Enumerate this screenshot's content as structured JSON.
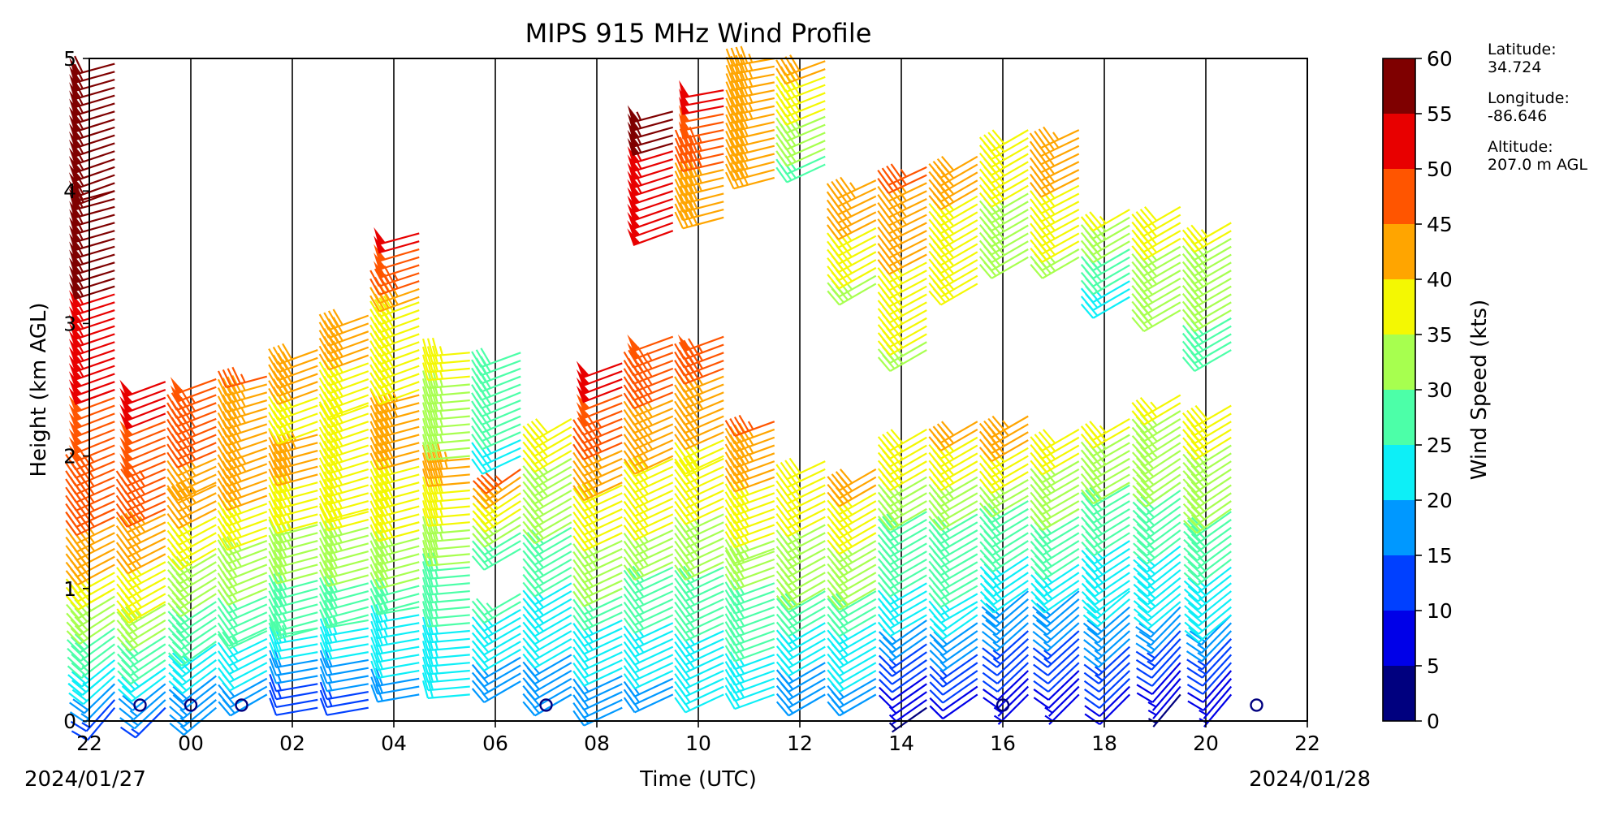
{
  "chart_data": {
    "type": "wind_barb_profile",
    "title": "MIPS 915 MHz Wind Profile",
    "xlabel": "Time (UTC)",
    "ylabel": "Height (km AGL)",
    "x_ticks": [
      "22",
      "00",
      "02",
      "04",
      "06",
      "08",
      "10",
      "12",
      "14",
      "16",
      "18",
      "20",
      "22"
    ],
    "x_tick_hours": [
      -2,
      0,
      2,
      4,
      6,
      8,
      10,
      12,
      14,
      16,
      18,
      20,
      22
    ],
    "x_range_hours": [
      -2,
      22
    ],
    "date_start": "2024/01/27",
    "date_end": "2024/01/28",
    "y_ticks": [
      "0",
      "1",
      "2",
      "3",
      "4",
      "5"
    ],
    "ylim": [
      0,
      5
    ],
    "grid": "vertical lines at every x tick",
    "colorbar": {
      "label": "Wind Speed (kts)",
      "ticks": [
        "0",
        "5",
        "10",
        "15",
        "20",
        "25",
        "30",
        "35",
        "40",
        "45",
        "50",
        "55",
        "60"
      ],
      "range": [
        0,
        60
      ],
      "bins": [
        {
          "min": 0,
          "max": 5,
          "color": "#00007f"
        },
        {
          "min": 5,
          "max": 10,
          "color": "#0000e8"
        },
        {
          "min": 10,
          "max": 15,
          "color": "#0040ff"
        },
        {
          "min": 15,
          "max": 20,
          "color": "#0098ff"
        },
        {
          "min": 20,
          "max": 25,
          "color": "#0deff7"
        },
        {
          "min": 25,
          "max": 30,
          "color": "#4cffa8"
        },
        {
          "min": 30,
          "max": 35,
          "color": "#a7ff4f"
        },
        {
          "min": 35,
          "max": 40,
          "color": "#f4f802"
        },
        {
          "min": 40,
          "max": 45,
          "color": "#ffa500"
        },
        {
          "min": 45,
          "max": 50,
          "color": "#ff5500"
        },
        {
          "min": 50,
          "max": 55,
          "color": "#e80000"
        },
        {
          "min": 55,
          "max": 60,
          "color": "#7f0000"
        }
      ]
    },
    "profiles": [
      {
        "time_hr": -1.5,
        "segments": [
          {
            "h0": 0.1,
            "h1": 0.4,
            "s0": 12,
            "s1": 22,
            "d0": 220,
            "d1": 230
          },
          {
            "h0": 0.4,
            "h1": 1.0,
            "s0": 23,
            "s1": 36,
            "d0": 230,
            "d1": 240
          },
          {
            "h0": 1.0,
            "h1": 1.6,
            "s0": 38,
            "s1": 46,
            "d0": 240,
            "d1": 245
          },
          {
            "h0": 1.6,
            "h1": 2.5,
            "s0": 45,
            "s1": 50,
            "d0": 245,
            "d1": 250
          },
          {
            "h0": 2.5,
            "h1": 4.0,
            "s0": 52,
            "s1": 58,
            "d0": 250,
            "d1": 255
          },
          {
            "h0": 4.0,
            "h1": 5.0,
            "s0": 55,
            "s1": 60,
            "d0": 250,
            "d1": 255
          }
        ]
      },
      {
        "time_hr": -0.5,
        "segments": [
          {
            "h0": 0.1,
            "h1": 0.4,
            "s0": 14,
            "s1": 22,
            "d0": 225,
            "d1": 235
          },
          {
            "h0": 0.4,
            "h1": 0.9,
            "s0": 24,
            "s1": 34,
            "d0": 235,
            "d1": 240
          },
          {
            "h0": 0.9,
            "h1": 1.6,
            "s0": 36,
            "s1": 44,
            "d0": 240,
            "d1": 245
          },
          {
            "h0": 1.6,
            "h1": 2.6,
            "s0": 45,
            "s1": 52,
            "d0": 245,
            "d1": 250
          }
        ]
      },
      {
        "time_hr": 0.5,
        "segments": [
          {
            "h0": 0.1,
            "h1": 0.6,
            "s0": 15,
            "s1": 25,
            "d0": 230,
            "d1": 235
          },
          {
            "h0": 0.6,
            "h1": 1.3,
            "s0": 26,
            "s1": 35,
            "d0": 235,
            "d1": 240
          },
          {
            "h0": 1.3,
            "h1": 1.8,
            "s0": 36,
            "s1": 44,
            "d0": 240,
            "d1": 245
          },
          {
            "h0": 1.8,
            "h1": 2.6,
            "s0": 44,
            "s1": 48,
            "d0": 245,
            "d1": 250
          }
        ]
      },
      {
        "time_hr": 1.5,
        "segments": [
          {
            "h0": 0.2,
            "h1": 0.7,
            "s0": 18,
            "s1": 26,
            "d0": 240,
            "d1": 245
          },
          {
            "h0": 0.7,
            "h1": 1.4,
            "s0": 27,
            "s1": 35,
            "d0": 245,
            "d1": 250
          },
          {
            "h0": 1.4,
            "h1": 2.0,
            "s0": 36,
            "s1": 44,
            "d0": 250,
            "d1": 250
          },
          {
            "h0": 2.0,
            "h1": 2.6,
            "s0": 40,
            "s1": 45,
            "d0": 250,
            "d1": 255
          }
        ]
      },
      {
        "time_hr": 2.5,
        "segments": [
          {
            "h0": 0.1,
            "h1": 0.7,
            "s0": 10,
            "s1": 25,
            "d0": 260,
            "d1": 260
          },
          {
            "h0": 0.7,
            "h1": 1.5,
            "s0": 26,
            "s1": 34,
            "d0": 255,
            "d1": 255
          },
          {
            "h0": 1.5,
            "h1": 2.2,
            "s0": 36,
            "s1": 44,
            "d0": 255,
            "d1": 255
          },
          {
            "h0": 2.2,
            "h1": 2.8,
            "s0": 38,
            "s1": 42,
            "d0": 250,
            "d1": 250
          }
        ]
      },
      {
        "time_hr": 3.5,
        "segments": [
          {
            "h0": 0.1,
            "h1": 0.8,
            "s0": 12,
            "s1": 26,
            "d0": 260,
            "d1": 260
          },
          {
            "h0": 0.8,
            "h1": 1.6,
            "s0": 27,
            "s1": 36,
            "d0": 255,
            "d1": 255
          },
          {
            "h0": 1.6,
            "h1": 2.4,
            "s0": 36,
            "s1": 40,
            "d0": 255,
            "d1": 250
          },
          {
            "h0": 2.4,
            "h1": 3.1,
            "s0": 38,
            "s1": 42,
            "d0": 250,
            "d1": 250
          }
        ]
      },
      {
        "time_hr": 4.5,
        "segments": [
          {
            "h0": 0.2,
            "h1": 0.9,
            "s0": 18,
            "s1": 26,
            "d0": 260,
            "d1": 260
          },
          {
            "h0": 0.9,
            "h1": 1.5,
            "s0": 28,
            "s1": 36,
            "d0": 255,
            "d1": 255
          },
          {
            "h0": 1.5,
            "h1": 2.5,
            "s0": 37,
            "s1": 44,
            "d0": 255,
            "d1": 255
          },
          {
            "h0": 2.5,
            "h1": 3.2,
            "s0": 38,
            "s1": 40,
            "d0": 250,
            "d1": 250
          },
          {
            "h0": 3.2,
            "h1": 3.7,
            "s0": 44,
            "s1": 52,
            "d0": 250,
            "d1": 255
          }
        ]
      },
      {
        "time_hr": 5.5,
        "segments": [
          {
            "h0": 0.2,
            "h1": 1.2,
            "s0": 22,
            "s1": 28,
            "d0": 265,
            "d1": 265
          },
          {
            "h0": 1.2,
            "h1": 2.0,
            "s0": 30,
            "s1": 44,
            "d0": 265,
            "d1": 265
          },
          {
            "h0": 2.0,
            "h1": 2.8,
            "s0": 32,
            "s1": 36,
            "d0": 265,
            "d1": 265
          }
        ]
      },
      {
        "time_hr": 6.5,
        "segments": [
          {
            "h0": 0.3,
            "h1": 1.0,
            "s0": 17,
            "s1": 27,
            "d0": 240,
            "d1": 240
          },
          {
            "h0": 1.3,
            "h1": 1.9,
            "s0": 25,
            "s1": 45,
            "d0": 240,
            "d1": 235
          },
          {
            "h0": 2.0,
            "h1": 2.8,
            "s0": 24,
            "s1": 30,
            "d0": 245,
            "d1": 250
          }
        ]
      },
      {
        "time_hr": 7.5,
        "segments": [
          {
            "h0": 0.2,
            "h1": 1.5,
            "s0": 17,
            "s1": 29,
            "d0": 240,
            "d1": 240
          },
          {
            "h0": 1.5,
            "h1": 2.3,
            "s0": 30,
            "s1": 38,
            "d0": 240,
            "d1": 240
          }
        ]
      },
      {
        "time_hr": 8.5,
        "segments": [
          {
            "h0": 0.1,
            "h1": 1.0,
            "s0": 16,
            "s1": 28,
            "d0": 245,
            "d1": 245
          },
          {
            "h0": 1.0,
            "h1": 1.8,
            "s0": 30,
            "s1": 40,
            "d0": 245,
            "d1": 245
          },
          {
            "h0": 1.8,
            "h1": 2.7,
            "s0": 42,
            "s1": 52,
            "d0": 245,
            "d1": 250
          }
        ]
      },
      {
        "time_hr": 9.5,
        "segments": [
          {
            "h0": 0.2,
            "h1": 1.2,
            "s0": 18,
            "s1": 30,
            "d0": 245,
            "d1": 245
          },
          {
            "h0": 1.2,
            "h1": 2.0,
            "s0": 32,
            "s1": 40,
            "d0": 245,
            "d1": 245
          },
          {
            "h0": 2.0,
            "h1": 2.9,
            "s0": 42,
            "s1": 48,
            "d0": 245,
            "d1": 250
          },
          {
            "h0": 3.7,
            "h1": 4.6,
            "s0": 50,
            "s1": 57,
            "d0": 250,
            "d1": 255
          }
        ]
      },
      {
        "time_hr": 10.5,
        "segments": [
          {
            "h0": 0.2,
            "h1": 1.2,
            "s0": 20,
            "s1": 30,
            "d0": 245,
            "d1": 245
          },
          {
            "h0": 1.2,
            "h1": 2.0,
            "s0": 32,
            "s1": 38,
            "d0": 245,
            "d1": 245
          },
          {
            "h0": 2.0,
            "h1": 2.9,
            "s0": 38,
            "s1": 48,
            "d0": 245,
            "d1": 250
          },
          {
            "h0": 3.8,
            "h1": 4.8,
            "s0": 40,
            "s1": 52,
            "d0": 255,
            "d1": 260
          }
        ]
      },
      {
        "time_hr": 11.5,
        "segments": [
          {
            "h0": 0.2,
            "h1": 1.3,
            "s0": 22,
            "s1": 32,
            "d0": 250,
            "d1": 250
          },
          {
            "h0": 1.3,
            "h1": 2.3,
            "s0": 34,
            "s1": 46,
            "d0": 250,
            "d1": 250
          },
          {
            "h0": 4.1,
            "h1": 5.0,
            "s0": 40,
            "s1": 45,
            "d0": 255,
            "d1": 260
          }
        ]
      },
      {
        "time_hr": 12.5,
        "segments": [
          {
            "h0": 0.2,
            "h1": 1.0,
            "s0": 16,
            "s1": 28,
            "d0": 240,
            "d1": 240
          },
          {
            "h0": 1.0,
            "h1": 2.0,
            "s0": 30,
            "s1": 40,
            "d0": 240,
            "d1": 245
          },
          {
            "h0": 4.2,
            "h1": 5.0,
            "s0": 28,
            "s1": 42,
            "d0": 245,
            "d1": 250
          }
        ]
      },
      {
        "time_hr": 13.5,
        "segments": [
          {
            "h0": 0.2,
            "h1": 1.0,
            "s0": 18,
            "s1": 28,
            "d0": 240,
            "d1": 240
          },
          {
            "h0": 1.0,
            "h1": 1.9,
            "s0": 30,
            "s1": 42,
            "d0": 240,
            "d1": 240
          },
          {
            "h0": 3.3,
            "h1": 4.1,
            "s0": 34,
            "s1": 44,
            "d0": 240,
            "d1": 245
          }
        ]
      },
      {
        "time_hr": 14.5,
        "segments": [
          {
            "h0": 0.1,
            "h1": 0.8,
            "s0": 4,
            "s1": 20,
            "d0": 235,
            "d1": 235
          },
          {
            "h0": 0.8,
            "h1": 1.6,
            "s0": 22,
            "s1": 30,
            "d0": 240,
            "d1": 240
          },
          {
            "h0": 1.6,
            "h1": 2.2,
            "s0": 32,
            "s1": 38,
            "d0": 240,
            "d1": 240
          },
          {
            "h0": 2.8,
            "h1": 4.2,
            "s0": 34,
            "s1": 46,
            "d0": 240,
            "d1": 245
          }
        ]
      },
      {
        "time_hr": 15.5,
        "segments": [
          {
            "h0": 0.2,
            "h1": 0.9,
            "s0": 8,
            "s1": 22,
            "d0": 235,
            "d1": 235
          },
          {
            "h0": 0.9,
            "h1": 1.6,
            "s0": 24,
            "s1": 30,
            "d0": 240,
            "d1": 240
          },
          {
            "h0": 1.6,
            "h1": 2.3,
            "s0": 30,
            "s1": 42,
            "d0": 240,
            "d1": 240
          },
          {
            "h0": 3.3,
            "h1": 4.3,
            "s0": 36,
            "s1": 42,
            "d0": 240,
            "d1": 240
          }
        ]
      },
      {
        "time_hr": 16.5,
        "segments": [
          {
            "h0": 0.2,
            "h1": 1.0,
            "s0": 6,
            "s1": 20,
            "d0": 225,
            "d1": 230
          },
          {
            "h0": 1.0,
            "h1": 1.7,
            "s0": 22,
            "s1": 30,
            "d0": 235,
            "d1": 240
          },
          {
            "h0": 1.7,
            "h1": 2.3,
            "s0": 32,
            "s1": 44,
            "d0": 240,
            "d1": 240
          },
          {
            "h0": 3.5,
            "h1": 4.5,
            "s0": 32,
            "s1": 38,
            "d0": 240,
            "d1": 240
          }
        ]
      },
      {
        "time_hr": 17.5,
        "segments": [
          {
            "h0": 0.2,
            "h1": 1.0,
            "s0": 6,
            "s1": 20,
            "d0": 225,
            "d1": 230
          },
          {
            "h0": 1.0,
            "h1": 1.6,
            "s0": 22,
            "s1": 30,
            "d0": 235,
            "d1": 240
          },
          {
            "h0": 1.6,
            "h1": 2.2,
            "s0": 30,
            "s1": 38,
            "d0": 240,
            "d1": 240
          },
          {
            "h0": 3.5,
            "h1": 4.5,
            "s0": 34,
            "s1": 44,
            "d0": 240,
            "d1": 245
          }
        ]
      },
      {
        "time_hr": 18.5,
        "segments": [
          {
            "h0": 0.2,
            "h1": 1.0,
            "s0": 8,
            "s1": 22,
            "d0": 225,
            "d1": 230
          },
          {
            "h0": 1.0,
            "h1": 1.8,
            "s0": 22,
            "s1": 28,
            "d0": 235,
            "d1": 240
          },
          {
            "h0": 1.8,
            "h1": 2.3,
            "s0": 30,
            "s1": 36,
            "d0": 240,
            "d1": 240
          },
          {
            "h0": 3.2,
            "h1": 3.9,
            "s0": 22,
            "s1": 36,
            "d0": 240,
            "d1": 240
          }
        ]
      },
      {
        "time_hr": 19.5,
        "segments": [
          {
            "h0": 0.2,
            "h1": 0.9,
            "s0": 4,
            "s1": 20,
            "d0": 220,
            "d1": 225
          },
          {
            "h0": 0.9,
            "h1": 1.8,
            "s0": 22,
            "s1": 28,
            "d0": 230,
            "d1": 235
          },
          {
            "h0": 1.8,
            "h1": 2.5,
            "s0": 30,
            "s1": 36,
            "d0": 235,
            "d1": 240
          },
          {
            "h0": 3.1,
            "h1": 3.9,
            "s0": 30,
            "s1": 38,
            "d0": 240,
            "d1": 240
          }
        ]
      },
      {
        "time_hr": 20.5,
        "segments": [
          {
            "h0": 0.2,
            "h1": 0.8,
            "s0": 6,
            "s1": 18,
            "d0": 220,
            "d1": 225
          },
          {
            "h0": 0.8,
            "h1": 1.6,
            "s0": 20,
            "s1": 30,
            "d0": 230,
            "d1": 235
          },
          {
            "h0": 1.6,
            "h1": 2.4,
            "s0": 30,
            "s1": 38,
            "d0": 235,
            "d1": 240
          },
          {
            "h0": 2.8,
            "h1": 3.8,
            "s0": 28,
            "s1": 36,
            "d0": 240,
            "d1": 240
          }
        ]
      }
    ],
    "calm_markers": [
      {
        "time_hr": -1,
        "height_km": 0.12
      },
      {
        "time_hr": 0,
        "height_km": 0.12
      },
      {
        "time_hr": 1,
        "height_km": 0.12
      },
      {
        "time_hr": 7,
        "height_km": 0.12
      },
      {
        "time_hr": 16,
        "height_km": 0.12
      },
      {
        "time_hr": 21,
        "height_km": 0.12
      }
    ]
  },
  "station_info": [
    {
      "label": "Latitude:",
      "value": "34.724"
    },
    {
      "label": "Longitude:",
      "value": "-86.646"
    },
    {
      "label": "Altitude:",
      "value": "207.0 m AGL"
    }
  ]
}
